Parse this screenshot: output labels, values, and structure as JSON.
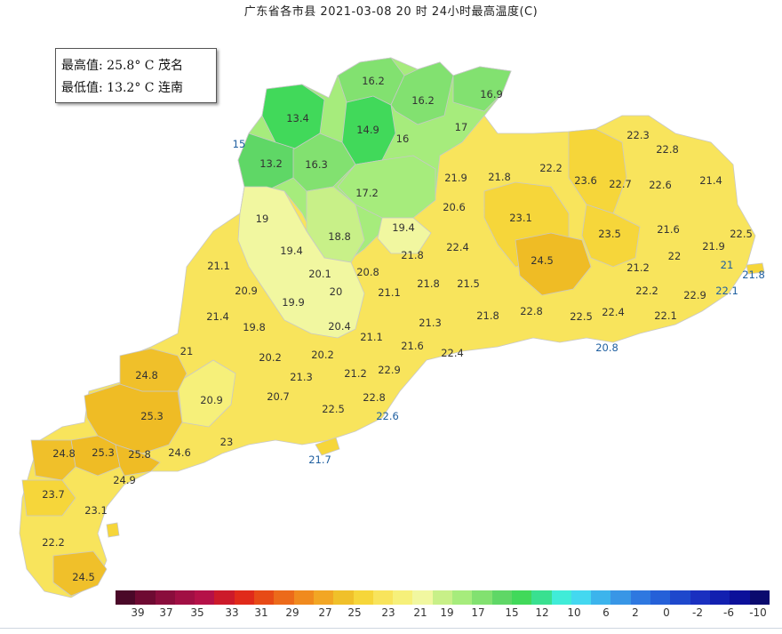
{
  "title": "广东省各市县  2021-03-08 20 时  24小时最高温度(C)",
  "stats": {
    "max_text": "最高值: 25.8° C 茂名",
    "min_text": "最低值: 13.2° C 连南"
  },
  "colors": {
    "region_hot": "#efbc25",
    "region_warm": "#f6d63a",
    "region_mild": "#f8e45c",
    "region_yellow": "#f6f07a",
    "region_pale": "#f1f7a0",
    "region_lightgreen": "#a6ec7c",
    "region_green": "#6fdc6a",
    "region_deepgreen": "#41d95a",
    "border": "#c8c8c8"
  },
  "legend": {
    "swatches": [
      "#4a0828",
      "#6e0a32",
      "#8a0d3c",
      "#a10f44",
      "#b51148",
      "#cc1a2a",
      "#e02a1a",
      "#e74a16",
      "#ec6a1a",
      "#f08a1e",
      "#f2a624",
      "#f0c02a",
      "#f6d63a",
      "#f8e45c",
      "#f6f07a",
      "#f1f7a0",
      "#c8f088",
      "#a6ec7c",
      "#82e170",
      "#5fd766",
      "#41d95a",
      "#39e090",
      "#40ecd8",
      "#44d8f0",
      "#3cb4ec",
      "#3896e6",
      "#2e78e0",
      "#2560d8",
      "#1e48cc",
      "#1a30c0",
      "#1220b0",
      "#0c109a",
      "#0a0a6e"
    ],
    "ticks": [
      "39",
      "37",
      "35",
      "33",
      "31",
      "29",
      "27",
      "25",
      "23",
      "21",
      "19",
      "17",
      "15",
      "12",
      "10",
      "6",
      "2",
      "0",
      "-2",
      "-6",
      "-10"
    ]
  },
  "stations": [
    {
      "v": "16.2"
    },
    {
      "v": "16.2"
    },
    {
      "v": "16.9"
    },
    {
      "v": "13.4"
    },
    {
      "v": "14.9"
    },
    {
      "v": "16"
    },
    {
      "v": "17"
    },
    {
      "v": "15"
    },
    {
      "v": "13.2"
    },
    {
      "v": "16.3"
    },
    {
      "v": "17.2"
    },
    {
      "v": "22.3"
    },
    {
      "v": "22.8"
    },
    {
      "v": "21.9"
    },
    {
      "v": "21.8"
    },
    {
      "v": "22.2"
    },
    {
      "v": "23.6"
    },
    {
      "v": "22.7"
    },
    {
      "v": "22.6"
    },
    {
      "v": "21.4"
    },
    {
      "v": "19"
    },
    {
      "v": "20.6"
    },
    {
      "v": "23.1"
    },
    {
      "v": "18.8"
    },
    {
      "v": "19.4"
    },
    {
      "v": "21.6"
    },
    {
      "v": "22.5"
    },
    {
      "v": "23.5"
    },
    {
      "v": "19.4"
    },
    {
      "v": "22.4"
    },
    {
      "v": "21.9"
    },
    {
      "v": "21.8"
    },
    {
      "v": "24.5"
    },
    {
      "v": "22"
    },
    {
      "v": "21.1"
    },
    {
      "v": "21"
    },
    {
      "v": "21.2"
    },
    {
      "v": "21.8"
    },
    {
      "v": "20.1"
    },
    {
      "v": "20.8"
    },
    {
      "v": "20.9"
    },
    {
      "v": "20"
    },
    {
      "v": "21.1"
    },
    {
      "v": "21.8"
    },
    {
      "v": "21.5"
    },
    {
      "v": "22.2"
    },
    {
      "v": "22.9"
    },
    {
      "v": "22.1"
    },
    {
      "v": "19.9"
    },
    {
      "v": "21.4"
    },
    {
      "v": "21.8"
    },
    {
      "v": "22.8"
    },
    {
      "v": "22.5"
    },
    {
      "v": "22.4"
    },
    {
      "v": "22.1"
    },
    {
      "v": "19.8"
    },
    {
      "v": "20.4"
    },
    {
      "v": "21.3"
    },
    {
      "v": "21.1"
    },
    {
      "v": "21.6"
    },
    {
      "v": "20.8"
    },
    {
      "v": "21"
    },
    {
      "v": "20.2"
    },
    {
      "v": "20.2"
    },
    {
      "v": "22.4"
    },
    {
      "v": "24.8"
    },
    {
      "v": "21.3"
    },
    {
      "v": "21.2"
    },
    {
      "v": "22.9"
    },
    {
      "v": "20.9"
    },
    {
      "v": "20.7"
    },
    {
      "v": "22.8"
    },
    {
      "v": "25.3"
    },
    {
      "v": "22.5"
    },
    {
      "v": "22.6"
    },
    {
      "v": "23"
    },
    {
      "v": "24.8"
    },
    {
      "v": "25.3"
    },
    {
      "v": "25.8"
    },
    {
      "v": "24.6"
    },
    {
      "v": "21.7"
    },
    {
      "v": "24.9"
    },
    {
      "v": "23.7"
    },
    {
      "v": "23.1"
    },
    {
      "v": "22.2"
    },
    {
      "v": "24.5"
    }
  ]
}
